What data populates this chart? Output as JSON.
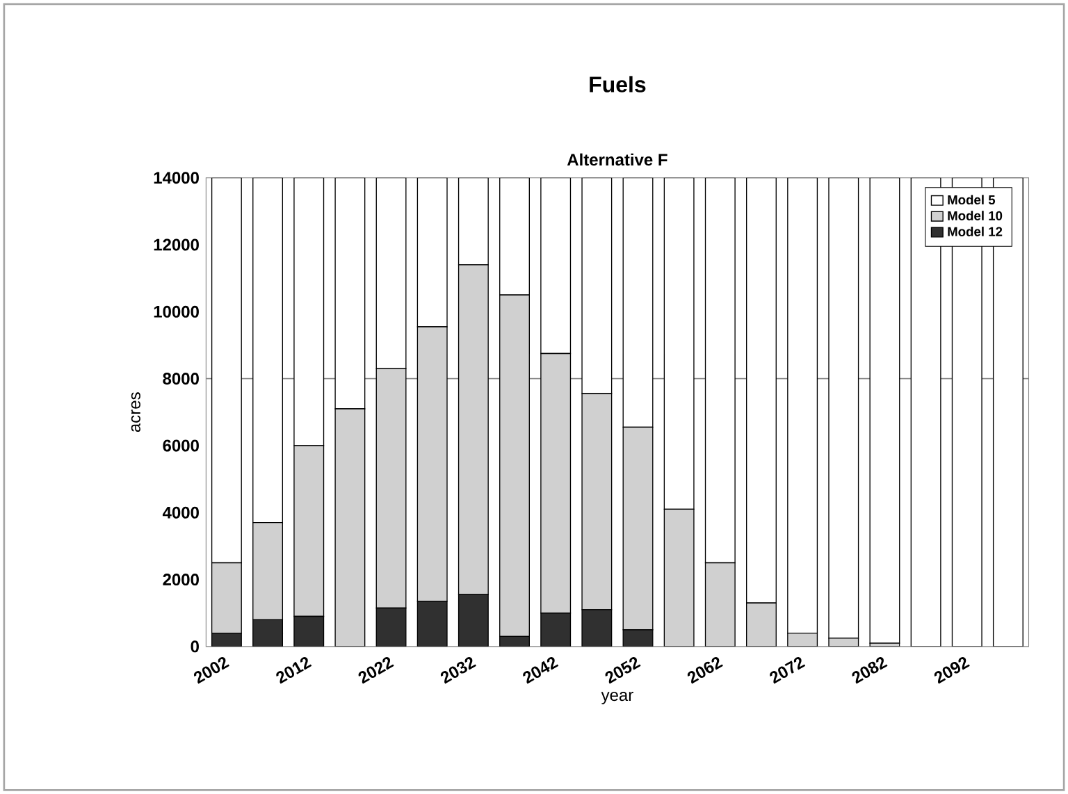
{
  "chart_data": {
    "type": "bar",
    "title": "Fuels",
    "subtitle": "Alternative F",
    "xlabel": "year",
    "ylabel": "acres",
    "categories": [
      "2002",
      null,
      "2012",
      null,
      "2022",
      null,
      "2032",
      null,
      "2042",
      null,
      "2052",
      null,
      "2062",
      null,
      "2072",
      null,
      "2082",
      null,
      "2092",
      null
    ],
    "stacked": true,
    "series": [
      {
        "name": "Model 12",
        "color": "#303030",
        "values": [
          400,
          800,
          900,
          0,
          1150,
          1350,
          1550,
          300,
          1000,
          1100,
          500,
          0,
          0,
          0,
          0,
          0,
          0,
          0,
          0,
          0
        ]
      },
      {
        "name": "Model 10",
        "color": "#d0d0d0",
        "values": [
          2100,
          2900,
          5100,
          7100,
          7150,
          8200,
          9850,
          10200,
          7750,
          6450,
          6050,
          4100,
          2500,
          1300,
          400,
          250,
          100,
          0,
          0,
          0
        ]
      },
      {
        "name": "Model 5",
        "color": "#ffffff",
        "values": [
          11500,
          10300,
          8000,
          6900,
          5700,
          4450,
          2600,
          3500,
          5250,
          6450,
          7450,
          9900,
          11500,
          12700,
          13600,
          13750,
          13900,
          14000,
          14000,
          14000
        ]
      }
    ],
    "ylim": [
      0,
      14000
    ],
    "yticks": [
      0,
      2000,
      4000,
      6000,
      8000,
      10000,
      12000,
      14000
    ],
    "ref_lines": [
      {
        "axis": "y",
        "value": 8000
      }
    ],
    "legend": "top right"
  }
}
